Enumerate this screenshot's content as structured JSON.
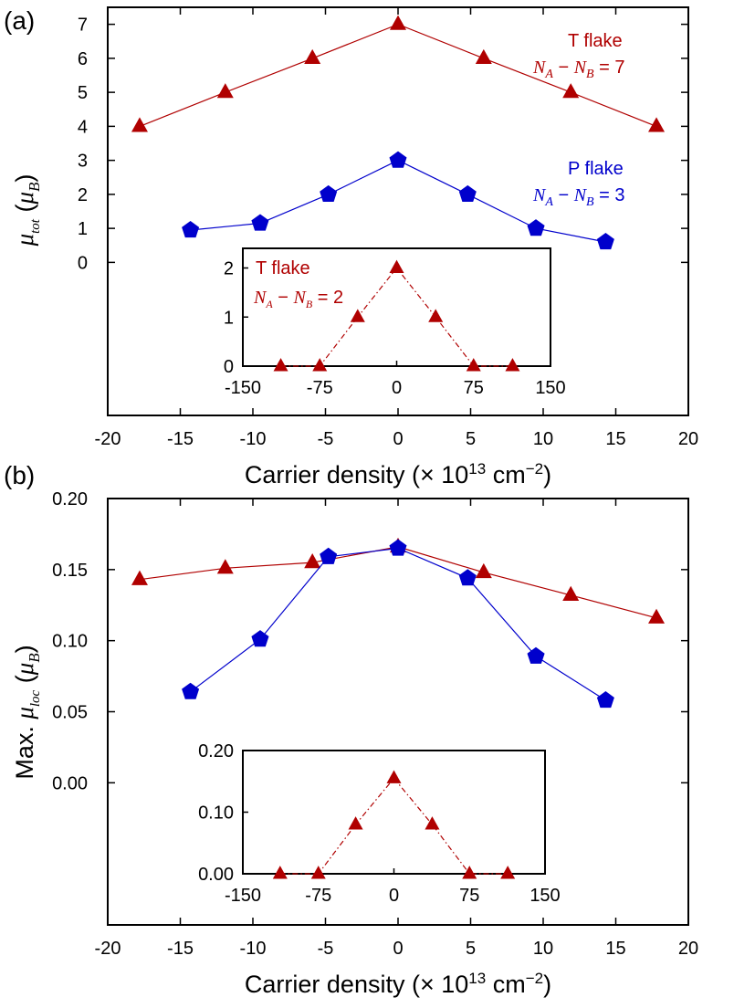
{
  "colors": {
    "t_flake": "#b00000",
    "p_flake": "#0000cc"
  },
  "chart_data": [
    {
      "panel": "(a)",
      "type": "line",
      "xlabel": "Carrier density (× 10¹³ cm⁻²)",
      "ylabel": "μ_tot (μ_B)",
      "xlim": [
        -20,
        20
      ],
      "ylim": [
        -4.5,
        7.5
      ],
      "xticks": [
        "-20",
        "-15",
        "-10",
        "-5",
        "0",
        "5",
        "10",
        "15",
        "20"
      ],
      "yticks": [
        "0",
        "1",
        "2",
        "3",
        "4",
        "5",
        "6",
        "7"
      ],
      "series": [
        {
          "name": "T flake",
          "annotation": "N_A − N_B = 7",
          "marker": "triangle",
          "x": [
            -17.8,
            -11.9,
            -5.9,
            0,
            5.9,
            11.9,
            17.8
          ],
          "y": [
            4,
            5,
            6,
            7,
            6,
            5,
            4
          ]
        },
        {
          "name": "P flake",
          "annotation": "N_A − N_B = 3",
          "marker": "pentagon",
          "x": [
            -14.3,
            -9.5,
            -4.8,
            0,
            4.8,
            9.5,
            14.3
          ],
          "y": [
            0.95,
            1.15,
            2.0,
            3.0,
            2.0,
            1.0,
            0.6
          ]
        }
      ],
      "inset": {
        "title": "T flake",
        "annotation": "N_A − N_B = 2",
        "xlim": [
          -150,
          150
        ],
        "ylim": [
          0,
          2.4
        ],
        "xticks": [
          "-150",
          "-75",
          "0",
          "75",
          "150"
        ],
        "yticks": [
          "0",
          "1",
          "2"
        ],
        "x": [
          -113,
          -75,
          -38,
          0,
          38,
          75,
          113
        ],
        "y": [
          0,
          0,
          1,
          2,
          1,
          0,
          0
        ]
      }
    },
    {
      "panel": "(b)",
      "type": "line",
      "xlabel": "Carrier density (× 10¹³ cm⁻²)",
      "ylabel": "Max. μ_loc (μ_B)",
      "xlim": [
        -20,
        20
      ],
      "ylim": [
        -0.1,
        0.2
      ],
      "xticks": [
        "-20",
        "-15",
        "-10",
        "-5",
        "0",
        "5",
        "10",
        "15",
        "20"
      ],
      "yticks": [
        "0.00",
        "0.05",
        "0.10",
        "0.15",
        "0.20"
      ],
      "series": [
        {
          "name": "T flake",
          "marker": "triangle",
          "x": [
            -17.8,
            -11.9,
            -5.9,
            0,
            5.9,
            11.9,
            17.8
          ],
          "y": [
            0.143,
            0.151,
            0.155,
            0.166,
            0.148,
            0.132,
            0.116
          ]
        },
        {
          "name": "P flake",
          "marker": "pentagon",
          "x": [
            -14.3,
            -9.5,
            -4.8,
            0,
            4.8,
            9.5,
            14.3
          ],
          "y": [
            0.064,
            0.101,
            0.159,
            0.165,
            0.144,
            0.089,
            0.058
          ]
        }
      ],
      "inset": {
        "xlim": [
          -150,
          150
        ],
        "ylim": [
          0,
          0.2
        ],
        "xticks": [
          "-150",
          "-75",
          "0",
          "75",
          "150"
        ],
        "yticks": [
          "0.00",
          "0.10",
          "0.20"
        ],
        "x": [
          -113,
          -75,
          -38,
          0,
          38,
          75,
          113
        ],
        "y": [
          0,
          0,
          0.08,
          0.155,
          0.08,
          0,
          0
        ]
      }
    }
  ]
}
